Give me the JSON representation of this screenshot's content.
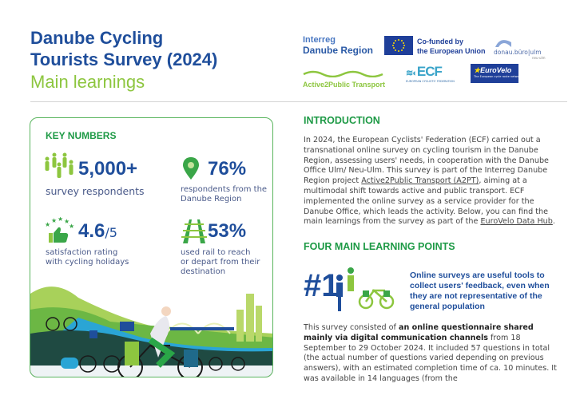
{
  "header": {
    "title_line1": "Danube Cycling",
    "title_line2": "Tourists Survey (2024)",
    "subtitle": "Main learnings"
  },
  "logos": {
    "interreg_1": "Interreg",
    "interreg_2": "Danube Region",
    "eu_1": "Co-funded by",
    "eu_2": "the European Union",
    "donau": "donau.büro|ulm",
    "donau_sub": "neu-ulm",
    "a2pt": "Active2Public Transport",
    "ecf": "ECF",
    "ecf_sub": "EUROPEAN CYCLISTS' FEDERATION",
    "eurovelo": "EuroVelo",
    "eurovelo_sub": "The European cycle route network"
  },
  "key_numbers": {
    "heading": "KEY NUMBERS",
    "items": [
      {
        "value": "5,000+",
        "label": "survey respondents",
        "icon": "people-icon"
      },
      {
        "value": "76%",
        "label1": "respondents from the",
        "label2": "Danube Region",
        "icon": "location-pin-icon"
      },
      {
        "value": "4.6",
        "suffix": "/5",
        "label1": "satisfaction rating",
        "label2": "with cycling holidays",
        "icon": "thumbs-up-stars-icon"
      },
      {
        "value": "53%",
        "label1": "used rail to reach",
        "label2": "or depart from their",
        "label3": "destination",
        "icon": "rail-track-icon"
      }
    ]
  },
  "introduction": {
    "heading": "INTRODUCTION",
    "text_1": "In 2024, the European Cyclists' Federation (ECF) carried out a transnational online survey on cycling tourism in the Danube Region, assessing users' needs, in cooperation with the Danube Office Ulm/ Neu-Ulm. This survey is part of the Interreg Danube Region project ",
    "link_1": "Active2Public Transport (A2PT)",
    "text_2": ", aiming at a multimodal shift towards active and public transport. ECF implemented the online survey as a service provider for the Danube Office, which leads the activity. Below, you can find the main learnings from the survey as part of the ",
    "link_2": "EuroVelo Data Hub",
    "text_3": "."
  },
  "learning_points": {
    "heading": "FOUR MAIN LEARNING POINTS",
    "point_1": {
      "number": "#1",
      "title": "Online surveys are useful tools to collect users' feedback, even when they are not representative of the general population"
    },
    "para_1": "This survey consisted of ",
    "para_bold": "an online questionnaire shared mainly via digital communication channels",
    "para_2": " from 18 September to 29 October 2024. It included 57 questions in total (the actual number of questions varied depending on previous answers), with an estimated completion time of ca. 10 minutes. It was available in 14 languages (from the"
  },
  "colors": {
    "blue": "#1f4e9b",
    "green": "#1e9a46",
    "light_green": "#8dc63f"
  }
}
